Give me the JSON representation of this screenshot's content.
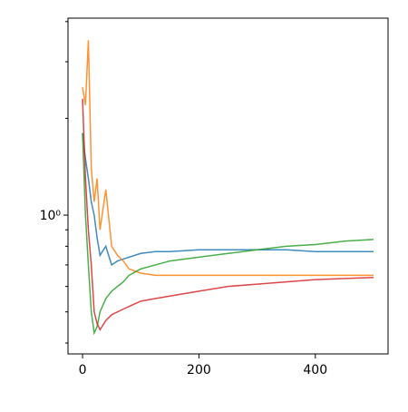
{
  "chart_data": {
    "type": "line",
    "log_y": true,
    "x": [
      0,
      5,
      10,
      15,
      20,
      25,
      30,
      40,
      50,
      60,
      70,
      80,
      100,
      125,
      150,
      200,
      250,
      300,
      350,
      400,
      450,
      500
    ],
    "series": [
      {
        "color": "#1f77b4",
        "values": [
          1.8,
          1.5,
          1.3,
          1.1,
          1.0,
          0.85,
          0.75,
          0.8,
          0.7,
          0.72,
          0.73,
          0.74,
          0.76,
          0.77,
          0.77,
          0.78,
          0.78,
          0.78,
          0.78,
          0.77,
          0.77,
          0.77
        ]
      },
      {
        "color": "#ff7f0e",
        "values": [
          2.5,
          2.2,
          3.5,
          1.4,
          1.1,
          1.3,
          0.9,
          1.2,
          0.8,
          0.75,
          0.72,
          0.68,
          0.66,
          0.65,
          0.65,
          0.65,
          0.65,
          0.65,
          0.65,
          0.65,
          0.65,
          0.65
        ]
      },
      {
        "color": "#2ca02c",
        "values": [
          1.8,
          1.0,
          0.7,
          0.5,
          0.43,
          0.45,
          0.5,
          0.55,
          0.58,
          0.6,
          0.62,
          0.65,
          0.68,
          0.7,
          0.72,
          0.74,
          0.76,
          0.78,
          0.8,
          0.81,
          0.83,
          0.84
        ]
      },
      {
        "color": "#d62728",
        "values": [
          2.3,
          1.3,
          0.9,
          0.7,
          0.5,
          0.46,
          0.44,
          0.47,
          0.49,
          0.5,
          0.51,
          0.52,
          0.54,
          0.55,
          0.56,
          0.58,
          0.6,
          0.61,
          0.62,
          0.63,
          0.635,
          0.64
        ]
      }
    ],
    "xlim": [
      -25,
      525
    ],
    "xticks": [
      0,
      200,
      400
    ],
    "ylim": [
      0.37,
      4.1
    ],
    "yticks": [
      {
        "value": 1,
        "label": "10⁰"
      }
    ],
    "yminorticks": [
      0.4,
      0.5,
      0.6,
      0.7,
      0.8,
      0.9,
      2,
      3,
      4
    ]
  }
}
